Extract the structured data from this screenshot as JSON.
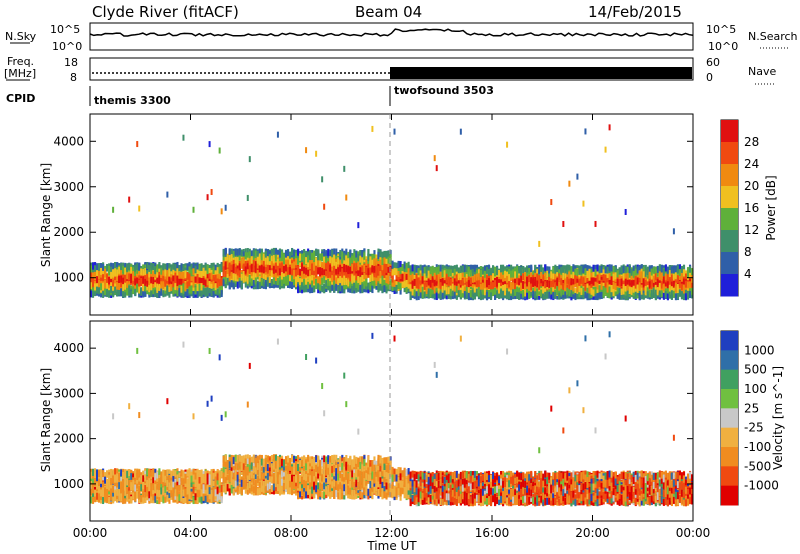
{
  "header": {
    "station": "Clyde River (fitACF)",
    "beam": "Beam 04",
    "date": "14/Feb/2015"
  },
  "top_panel": {
    "left_label": "N.Sky",
    "left_ticks": [
      "10^5",
      "10^0"
    ],
    "right_label": "N.Search",
    "right_ticks": [
      "10^5",
      "10^0"
    ]
  },
  "freq_panel": {
    "left_label_1": "Freq.",
    "left_label_2": "[MHz]",
    "left_ticks": [
      "18",
      "8"
    ],
    "right_label": "Nave",
    "right_ticks": [
      "60",
      "0"
    ]
  },
  "cpid_panel": {
    "label": "CPID",
    "modes": [
      "themis 3300",
      "twofsound 3503"
    ]
  },
  "colors": {
    "power_scale": [
      "#1f1fd9",
      "#2f5fa8",
      "#3f8f6a",
      "#5fb03a",
      "#f0c020",
      "#f08a10",
      "#f04a10",
      "#e01010"
    ],
    "velocity_scale": [
      "#e00000",
      "#f04a10",
      "#f08c20",
      "#f0b040",
      "#c8c8c8",
      "#70c040",
      "#40a060",
      "#2f6fa8",
      "#1f3fc0"
    ]
  },
  "chart_data": [
    {
      "type": "heatmap",
      "title": "Power",
      "ylabel": "Slant Range [km]",
      "xlabel": "",
      "ylim": [
        180,
        4600
      ],
      "yticks": [
        "1000",
        "2000",
        "3000",
        "4000"
      ],
      "xticks": [
        "00:00",
        "04:00",
        "08:00",
        "12:00",
        "16:00",
        "20:00",
        "00:00"
      ],
      "colorbar_label": "Power [dB]",
      "colorbar_ticks": [
        "4",
        "8",
        "12",
        "16",
        "20",
        "24",
        "28"
      ],
      "colorbar_range": [
        0,
        32
      ]
    },
    {
      "type": "heatmap",
      "title": "Velocity",
      "ylabel": "Slant Range [km]",
      "xlabel": "Time UT",
      "ylim": [
        180,
        4600
      ],
      "yticks": [
        "1000",
        "2000",
        "3000",
        "4000"
      ],
      "xticks": [
        "00:00",
        "04:00",
        "08:00",
        "12:00",
        "16:00",
        "20:00",
        "00:00"
      ],
      "colorbar_label": "Velocity [m s^-1]",
      "colorbar_ticks": [
        "1000",
        "500",
        "100",
        "25",
        "-25",
        "-100",
        "-500",
        "-1000"
      ]
    }
  ]
}
